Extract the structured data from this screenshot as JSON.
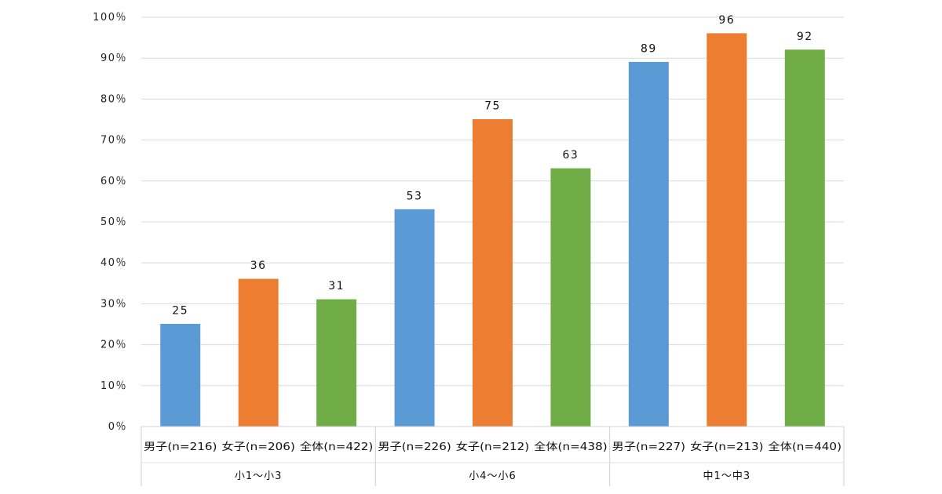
{
  "chart_data": {
    "type": "bar",
    "ylim": [
      0,
      100
    ],
    "yticks": [
      "0％",
      "10％",
      "20％",
      "30％",
      "40％",
      "50％",
      "60％",
      "70％",
      "80％",
      "90％",
      "100％"
    ],
    "grid": true,
    "colors": [
      "#5b9bd5",
      "#ed7d31",
      "#70ad47"
    ],
    "groups": [
      {
        "label": "小1～小3",
        "categories": [
          "男子(n=216)",
          "女子(n=206)",
          "全体(n=422)"
        ],
        "values": [
          25,
          36,
          31
        ]
      },
      {
        "label": "小4～小6",
        "categories": [
          "男子(n=226)",
          "女子(n=212)",
          "全体(n=438)"
        ],
        "values": [
          53,
          75,
          63
        ]
      },
      {
        "label": "中1～中3",
        "categories": [
          "男子(n=227)",
          "女子(n=213)",
          "全体(n=440)"
        ],
        "values": [
          89,
          96,
          92
        ]
      }
    ]
  }
}
